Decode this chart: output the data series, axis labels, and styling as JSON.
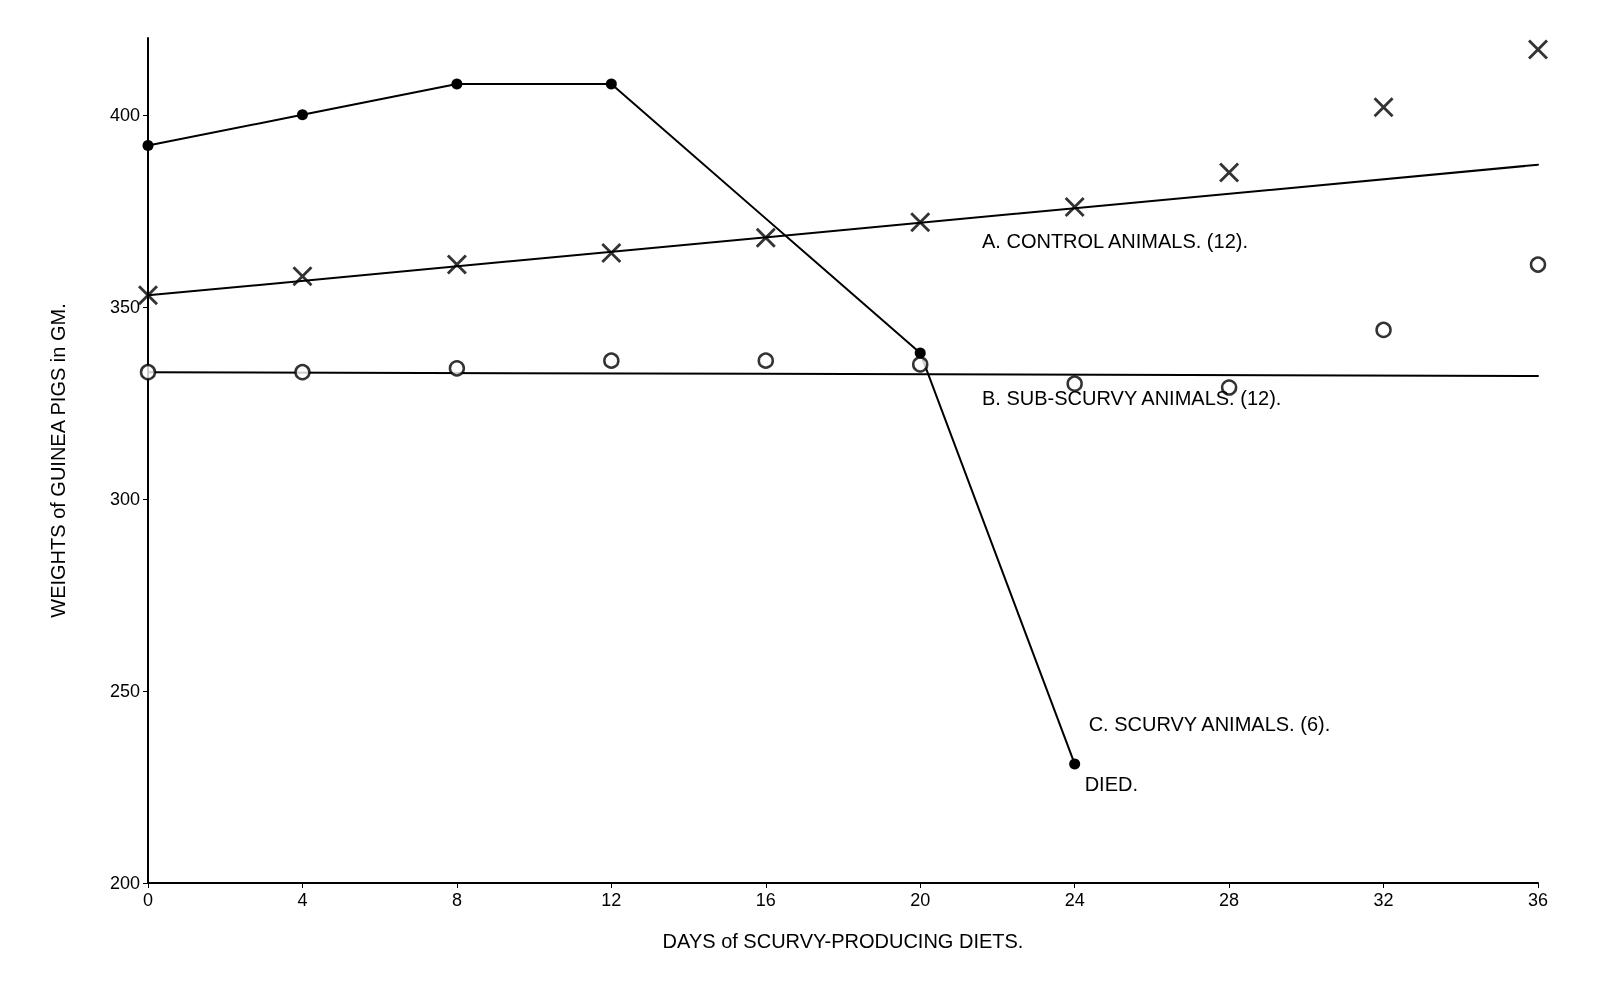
{
  "chart_data": {
    "type": "line",
    "xlabel": "DAYS of SCURVY-PRODUCING DIETS.",
    "ylabel": "WEIGHTS of GUINEA PIGS in GM.",
    "xlim": [
      0,
      36
    ],
    "xticks": [
      0,
      4,
      8,
      12,
      16,
      20,
      24,
      28,
      32,
      36
    ],
    "ylim": [
      200,
      420
    ],
    "yticks": [
      200,
      250,
      300,
      350,
      400
    ],
    "grid": false,
    "legend": false,
    "series": [
      {
        "type": "scatter",
        "marker": "cross",
        "color": "#000000",
        "x": [
          0,
          4,
          8,
          12,
          16,
          20,
          24,
          28,
          32,
          36
        ],
        "values": [
          353,
          358,
          361,
          364,
          368,
          372,
          376,
          385,
          402,
          417
        ]
      },
      {
        "name": "A. CONTROL ANIMALS. (12).",
        "marker": "none",
        "color": "#000000",
        "x": [
          0,
          36
        ],
        "values": [
          353,
          387
        ]
      },
      {
        "type": "scatter",
        "marker": "circle",
        "color": "#000000",
        "x": [
          0,
          4,
          8,
          12,
          16,
          20,
          24,
          28,
          32,
          36
        ],
        "values": [
          333,
          333,
          334,
          336,
          336,
          335,
          330,
          329,
          344,
          361
        ]
      },
      {
        "name": "B. SUB-SCURVY ANIMALS. (12).",
        "marker": "none",
        "color": "#000000",
        "x": [
          0,
          36
        ],
        "values": [
          333,
          332
        ]
      },
      {
        "name": "C. SCURVY ANIMALS. (6).",
        "marker": "circle",
        "color": "#000000",
        "x": [
          0,
          4,
          8,
          12,
          20,
          24
        ],
        "values": [
          392,
          400,
          408,
          408,
          338,
          231
        ]
      }
    ],
    "annotations": [
      {
        "text": "DIED.",
        "x": 24,
        "y": 231
      }
    ]
  }
}
